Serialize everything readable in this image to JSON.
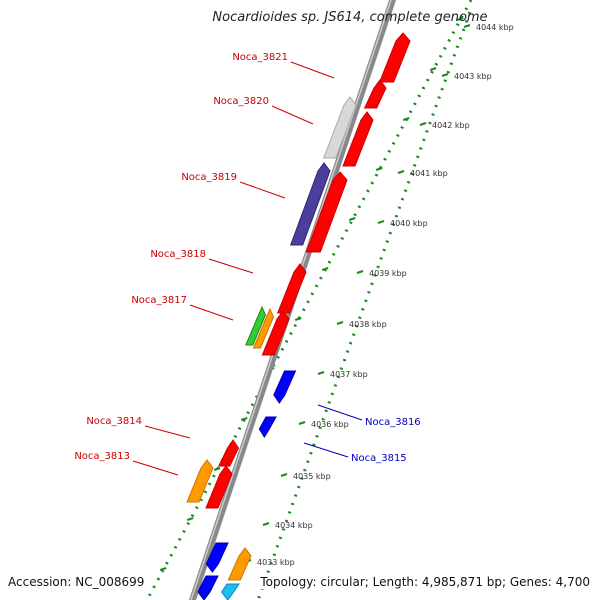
{
  "title": "Nocardioides sp. JS614, complete genome",
  "footer": {
    "accession": "Accession: NC_008699",
    "genome_info": "Topology: circular; Length: 4,985,871 bp; Genes: 4,700"
  },
  "colors": {
    "forward_label": "#cc0000",
    "reverse_label": "#0000bb",
    "backbone": "#777777",
    "tick": "#1a8a1a"
  },
  "scale_labels": [
    "4044 kbp",
    "4043 kbp",
    "4042 kbp",
    "4041 kbp",
    "4040 kbp",
    "4039 kbp",
    "4038 kbp",
    "4037 kbp",
    "4036 kbp",
    "4035 kbp",
    "4034 kbp",
    "4033 kbp"
  ],
  "gene_labels": [
    {
      "text": "Noca_3821",
      "strand": "forward"
    },
    {
      "text": "Noca_3820",
      "strand": "forward"
    },
    {
      "text": "Noca_3819",
      "strand": "forward"
    },
    {
      "text": "Noca_3818",
      "strand": "forward"
    },
    {
      "text": "Noca_3817",
      "strand": "forward"
    },
    {
      "text": "Noca_3814",
      "strand": "forward"
    },
    {
      "text": "Noca_3813",
      "strand": "forward"
    },
    {
      "text": "Noca_3816",
      "strand": "reverse"
    },
    {
      "text": "Noca_3815",
      "strand": "reverse"
    }
  ]
}
